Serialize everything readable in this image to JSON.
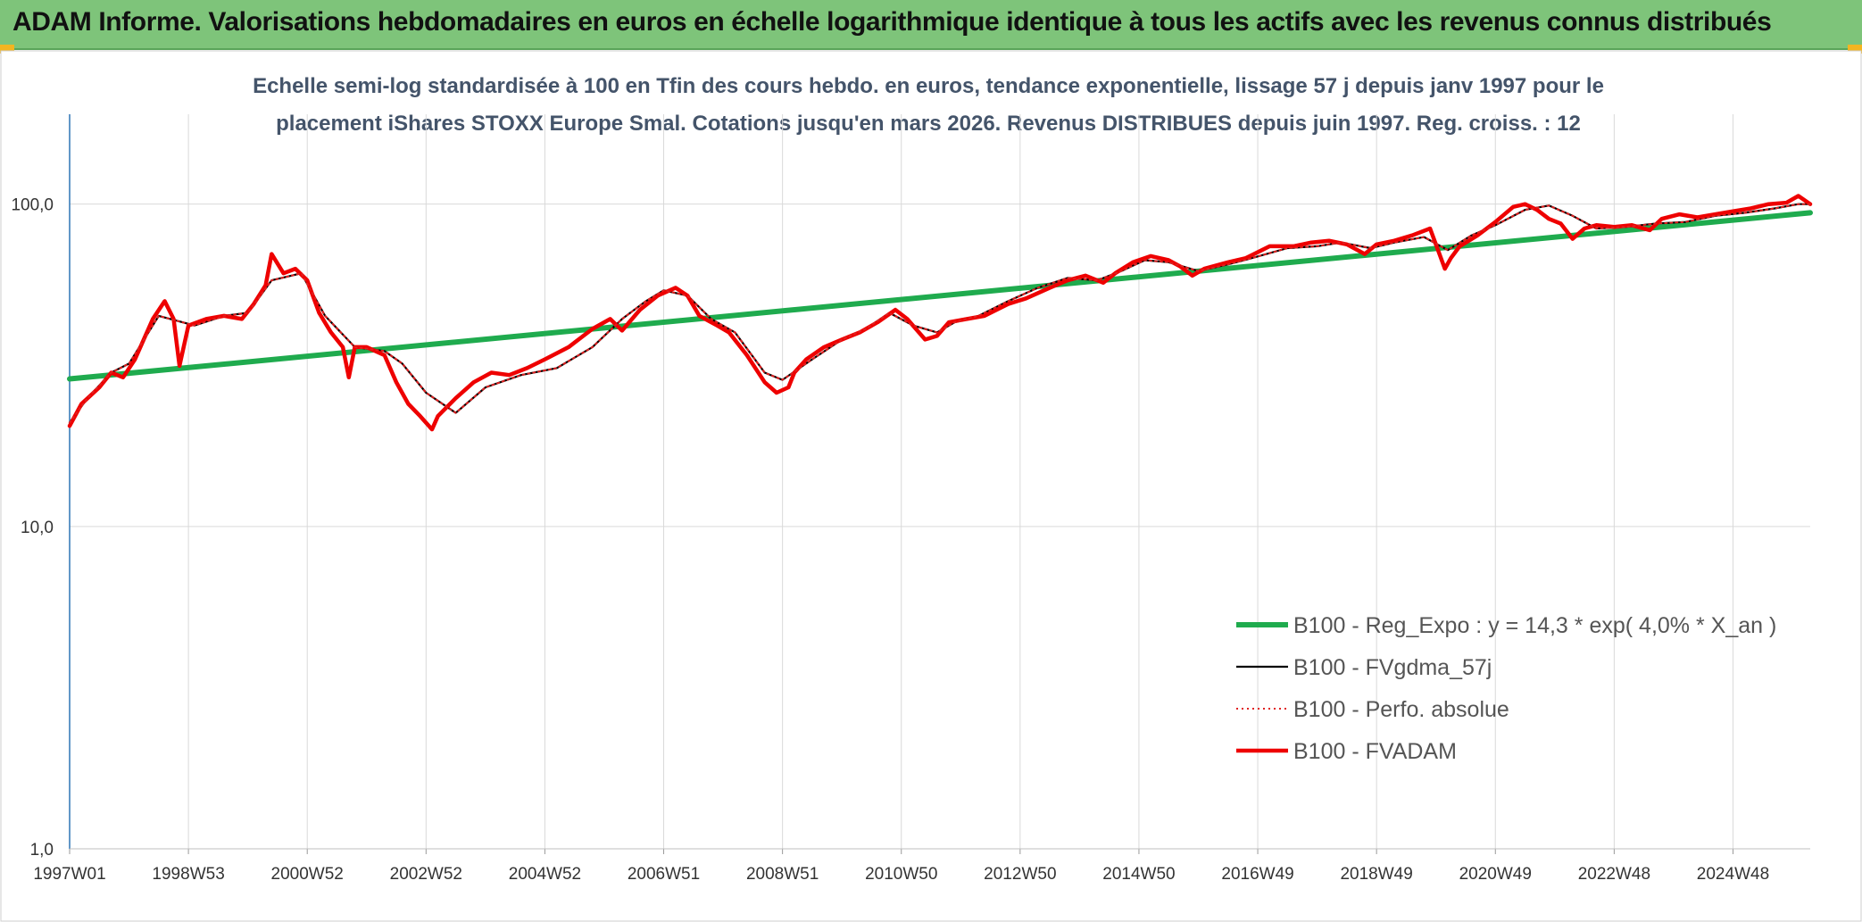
{
  "header": {
    "title": "ADAM Informe. Valorisations hebdomadaires en euros en échelle logarithmique identique à tous les actifs avec les revenus connus distribués"
  },
  "chart_data": {
    "type": "line",
    "title_lines": [
      "Echelle semi-log standardisée à 100 en Tfin des cours hebdo. en euros, tendance exponentielle, lissage 57 j depuis janv 1997 pour le",
      "placement iShares STOXX Europe Smal. Cotations jusqu'en mars 2026. Revenus DISTRIBUES depuis juin 1997. Reg. croiss. : 12"
    ],
    "y_scale": "log",
    "ylim": [
      1,
      190
    ],
    "y_ticks": [
      1,
      10,
      100
    ],
    "y_tick_labels": [
      "1,0",
      "10,0",
      "100,0"
    ],
    "xlim": [
      1997.0,
      2026.3
    ],
    "x_ticks": [
      1997.0,
      1999.0,
      2001.0,
      2003.0,
      2005.0,
      2007.0,
      2009.0,
      2011.0,
      2013.0,
      2015.0,
      2017.0,
      2019.0,
      2021.0,
      2023.0,
      2025.0
    ],
    "x_tick_labels": [
      "1997W01",
      "1998W53",
      "2000W52",
      "2002W52",
      "2004W52",
      "2006W51",
      "2008W51",
      "2010W50",
      "2012W50",
      "2014W50",
      "2016W49",
      "2018W49",
      "2020W49",
      "2022W48",
      "2024W48"
    ],
    "grid": {
      "vertical": true,
      "horizontal": true
    },
    "legend_position": "bottom-right",
    "series": [
      {
        "name": "B100 - Reg_Expo : y = 14,3 * exp( 4,0% *  X_an )",
        "color": "#1fab4e",
        "style": "solid-thick",
        "x": [
          1997.0,
          2026.3
        ],
        "y": [
          28.7,
          94.0
        ]
      },
      {
        "name": "B100 - FVgdma_57j",
        "color": "#000000",
        "style": "solid",
        "x": [
          1997.0,
          1997.3,
          1997.7,
          1998.0,
          1998.5,
          1998.9,
          1999.1,
          1999.6,
          2000.0,
          2000.4,
          2000.9,
          2001.3,
          2001.8,
          2002.3,
          2002.6,
          2003.0,
          2003.5,
          2004.0,
          2004.6,
          2005.2,
          2005.8,
          2006.3,
          2006.7,
          2007.0,
          2007.4,
          2007.8,
          2008.2,
          2008.7,
          2009.0,
          2009.5,
          2010.0,
          2010.4,
          2010.8,
          2011.2,
          2011.6,
          2011.9,
          2012.3,
          2012.8,
          2013.3,
          2013.8,
          2014.3,
          2014.7,
          2015.1,
          2015.5,
          2016.0,
          2016.5,
          2016.9,
          2017.5,
          2018.0,
          2018.4,
          2018.9,
          2019.3,
          2019.8,
          2020.2,
          2020.6,
          2021.0,
          2021.5,
          2021.9,
          2022.3,
          2022.7,
          2023.2,
          2023.7,
          2024.2,
          2024.7,
          2025.2,
          2025.7,
          2026.1,
          2026.3
        ],
        "y": [
          21.0,
          25.0,
          30.0,
          32.0,
          45.0,
          43.0,
          42.0,
          45.0,
          46.0,
          58.0,
          61.0,
          45.0,
          36.0,
          35.0,
          32.0,
          26.0,
          22.5,
          27.0,
          29.5,
          31.0,
          36.0,
          44.0,
          50.0,
          54.0,
          52.0,
          44.0,
          40.0,
          30.0,
          28.5,
          33.0,
          38.0,
          41.0,
          46.0,
          42.0,
          40.0,
          43.0,
          45.0,
          50.0,
          55.0,
          59.0,
          58.0,
          62.0,
          67.0,
          66.0,
          62.0,
          65.0,
          68.0,
          73.0,
          74.0,
          76.0,
          73.0,
          76.0,
          79.0,
          72.0,
          80.0,
          86.0,
          96.0,
          99.0,
          92.0,
          84.0,
          85.0,
          87.0,
          88.0,
          92.0,
          94.0,
          97.0,
          100.0,
          100.0
        ]
      },
      {
        "name": "B100 - Perfo. absolue",
        "color": "#e02020",
        "style": "dotted",
        "x": [
          1997.0,
          1997.3,
          1997.7,
          1998.0,
          1998.5,
          1998.9,
          1999.1,
          1999.6,
          2000.0,
          2000.4,
          2000.9,
          2001.3,
          2001.8,
          2002.3,
          2002.6,
          2003.0,
          2003.5,
          2004.0,
          2004.6,
          2005.2,
          2005.8,
          2006.3,
          2006.7,
          2007.0,
          2007.4,
          2007.8,
          2008.2,
          2008.7,
          2009.0,
          2009.5,
          2010.0,
          2010.4,
          2010.8,
          2011.2,
          2011.6,
          2011.9,
          2012.3,
          2012.8,
          2013.3,
          2013.8,
          2014.3,
          2014.7,
          2015.1,
          2015.5,
          2016.0,
          2016.5,
          2016.9,
          2017.5,
          2018.0,
          2018.4,
          2018.9,
          2019.3,
          2019.8,
          2020.2,
          2020.6,
          2021.0,
          2021.5,
          2021.9,
          2022.3,
          2022.7,
          2023.2,
          2023.7,
          2024.2,
          2024.7,
          2025.2,
          2025.7,
          2026.1,
          2026.3
        ],
        "y": [
          21.0,
          25.0,
          30.0,
          32.0,
          45.0,
          43.0,
          42.0,
          45.0,
          46.0,
          58.0,
          61.0,
          45.0,
          36.0,
          35.0,
          32.0,
          26.0,
          22.5,
          27.0,
          29.5,
          31.0,
          36.0,
          44.0,
          50.0,
          54.0,
          52.0,
          44.0,
          40.0,
          30.0,
          28.5,
          33.0,
          38.0,
          41.0,
          46.0,
          42.0,
          40.0,
          43.0,
          45.0,
          50.0,
          55.0,
          59.0,
          58.0,
          62.0,
          67.0,
          66.0,
          62.0,
          65.0,
          68.0,
          73.0,
          74.0,
          76.0,
          73.0,
          76.0,
          79.0,
          72.0,
          80.0,
          86.0,
          96.0,
          99.0,
          92.0,
          84.0,
          85.0,
          87.0,
          88.0,
          92.0,
          94.0,
          97.0,
          100.0,
          100.0
        ]
      },
      {
        "name": "B100 - FVADAM",
        "color": "#ee0000",
        "style": "solid-thick",
        "x": [
          1997.0,
          1997.2,
          1997.5,
          1997.7,
          1997.9,
          1998.1,
          1998.4,
          1998.6,
          1998.75,
          1998.85,
          1999.0,
          1999.3,
          1999.6,
          1999.9,
          2000.1,
          2000.3,
          2000.4,
          2000.6,
          2000.8,
          2001.0,
          2001.2,
          2001.4,
          2001.6,
          2001.7,
          2001.8,
          2002.0,
          2002.3,
          2002.5,
          2002.7,
          2002.9,
          2003.1,
          2003.2,
          2003.5,
          2003.8,
          2004.1,
          2004.4,
          2004.7,
          2005.0,
          2005.4,
          2005.8,
          2006.1,
          2006.3,
          2006.6,
          2006.9,
          2007.2,
          2007.4,
          2007.6,
          2007.9,
          2008.1,
          2008.4,
          2008.7,
          2008.9,
          2009.1,
          2009.2,
          2009.4,
          2009.7,
          2010.0,
          2010.3,
          2010.6,
          2010.9,
          2011.1,
          2011.4,
          2011.6,
          2011.8,
          2012.1,
          2012.4,
          2012.8,
          2013.1,
          2013.5,
          2013.8,
          2014.1,
          2014.4,
          2014.6,
          2014.9,
          2015.2,
          2015.5,
          2015.7,
          2015.9,
          2016.1,
          2016.5,
          2016.8,
          2017.2,
          2017.6,
          2017.9,
          2018.2,
          2018.5,
          2018.8,
          2019.0,
          2019.3,
          2019.6,
          2019.9,
          2020.15,
          2020.25,
          2020.4,
          2020.7,
          2021.0,
          2021.3,
          2021.5,
          2021.7,
          2021.9,
          2022.1,
          2022.3,
          2022.5,
          2022.7,
          2023.0,
          2023.3,
          2023.6,
          2023.8,
          2024.1,
          2024.4,
          2024.7,
          2025.0,
          2025.3,
          2025.6,
          2025.9,
          2026.1,
          2026.3
        ],
        "y": [
          20.5,
          24.0,
          27.0,
          30.0,
          29.0,
          33.0,
          44.0,
          50.0,
          44.0,
          31.5,
          42.0,
          44.0,
          45.0,
          44.0,
          49.0,
          56.0,
          70.0,
          61.0,
          63.0,
          58.0,
          46.0,
          40.0,
          36.0,
          29.0,
          36.0,
          36.0,
          34.0,
          28.0,
          24.0,
          22.0,
          20.0,
          22.0,
          25.0,
          28.0,
          30.0,
          29.5,
          31.0,
          33.0,
          36.0,
          41.0,
          44.0,
          40.5,
          47.0,
          52.0,
          55.0,
          52.0,
          45.0,
          42.0,
          40.0,
          34.0,
          28.0,
          26.0,
          27.0,
          30.0,
          33.0,
          36.0,
          38.0,
          40.0,
          43.0,
          47.0,
          44.0,
          38.0,
          39.0,
          43.0,
          44.0,
          45.0,
          49.0,
          51.0,
          55.0,
          58.0,
          60.0,
          57.0,
          61.0,
          66.0,
          69.0,
          67.0,
          64.0,
          60.0,
          63.0,
          66.0,
          68.0,
          74.0,
          74.0,
          76.0,
          77.0,
          75.0,
          70.0,
          75.0,
          77.0,
          80.0,
          84.0,
          63.0,
          68.0,
          74.0,
          80.0,
          88.0,
          98.0,
          100.0,
          96.0,
          90.0,
          87.0,
          78.0,
          84.0,
          86.0,
          85.0,
          86.0,
          83.0,
          90.0,
          93.0,
          91.0,
          93.0,
          95.0,
          97.0,
          100.0,
          101.0,
          106.0,
          100.0
        ]
      }
    ]
  }
}
